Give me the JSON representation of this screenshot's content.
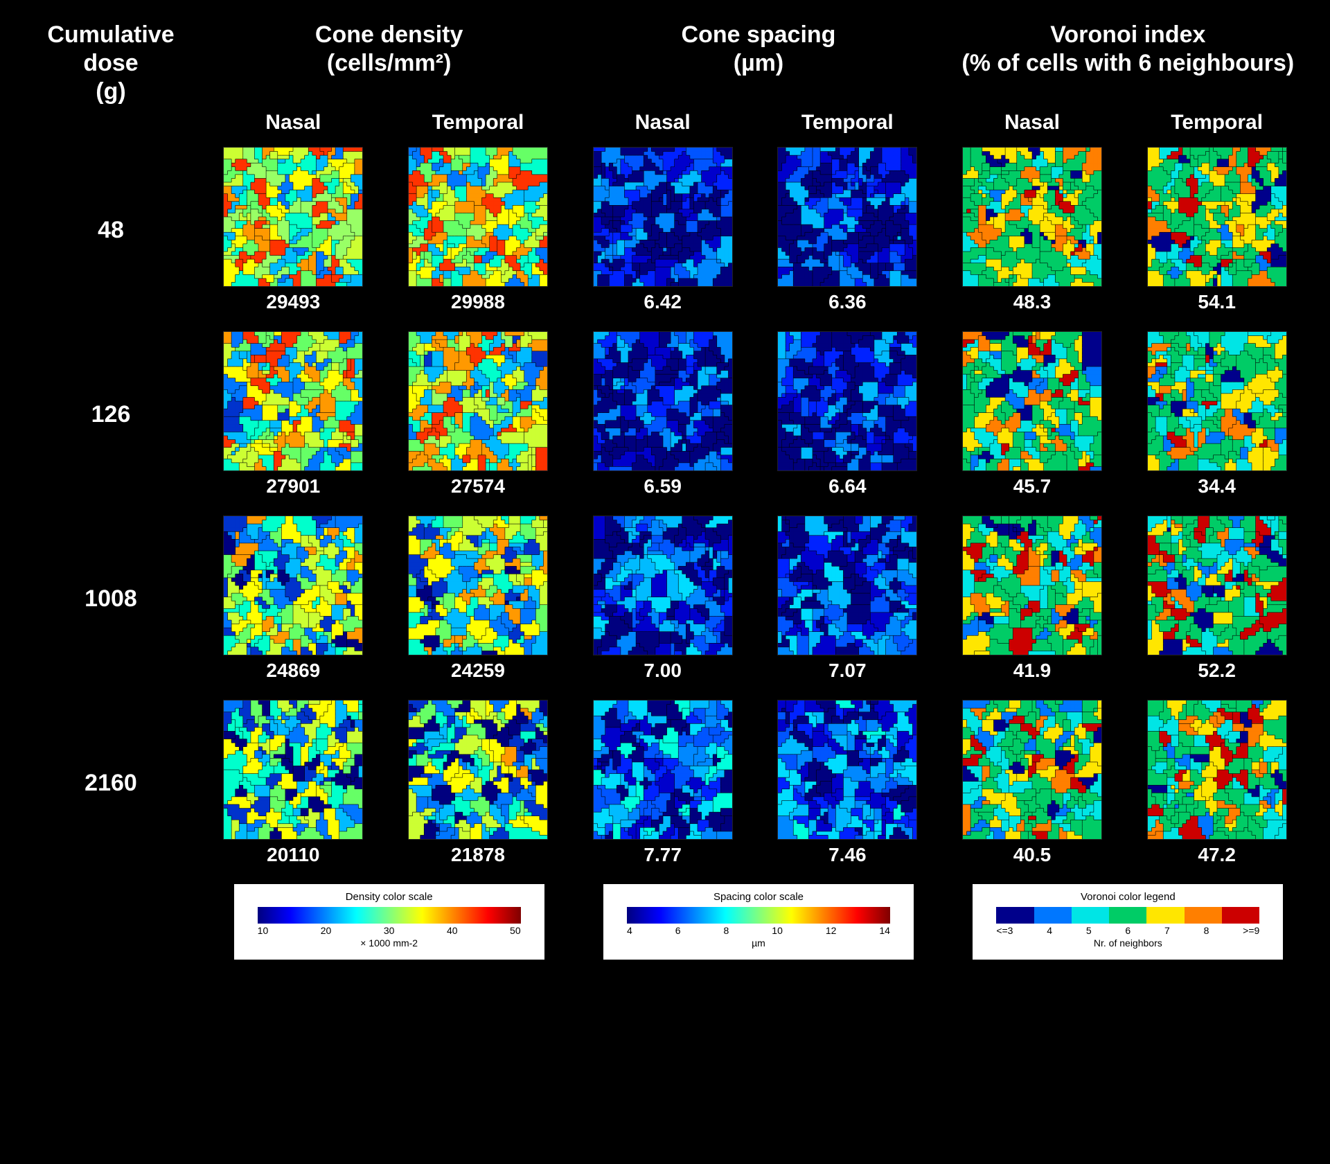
{
  "headers": {
    "row_label_l1": "Cumulative dose",
    "row_label_l2": "(g)",
    "col1_l1": "Cone density",
    "col1_l2": "(cells/mm²)",
    "col2_l1": "Cone spacing",
    "col2_l2": "(µm)",
    "col3_l1": "Voronoi index",
    "col3_l2": "(% of cells with 6 neighbours)",
    "sub_nasal": "Nasal",
    "sub_temporal": "Temporal"
  },
  "palettes": {
    "density": [
      "#00007f",
      "#0033cc",
      "#0077ff",
      "#00bbff",
      "#00ffcc",
      "#66ff66",
      "#ccff33",
      "#ffff00",
      "#ff9900",
      "#ff3300",
      "#99ff66",
      "#33ccff"
    ],
    "spacing": [
      "#00007f",
      "#0000cc",
      "#0022ff",
      "#0055ff",
      "#0088ff",
      "#00bbff",
      "#00ddff",
      "#00ffdd",
      "#33ffaa",
      "#66ff77",
      "#0044dd",
      "#0066ee"
    ],
    "voronoi": [
      "#00008b",
      "#0077ff",
      "#00e5e5",
      "#00cc66",
      "#ffe600",
      "#ff7f00",
      "#cc0000"
    ]
  },
  "legends": {
    "density": {
      "title": "Density color scale",
      "ticks": [
        "10",
        "20",
        "30",
        "40",
        "50"
      ],
      "unit": "× 1000 mm-2"
    },
    "spacing": {
      "title": "Spacing color scale",
      "ticks": [
        "4",
        "6",
        "8",
        "10",
        "12",
        "14"
      ],
      "unit": "µm"
    },
    "voronoi": {
      "title": "Voronoi color legend",
      "ticks": [
        "<=3",
        "4",
        "5",
        "6",
        "7",
        "8",
        ">=9"
      ],
      "unit": "Nr. of neighbors"
    }
  },
  "rows": [
    {
      "dose": "48",
      "cells": [
        {
          "palette": "density",
          "seed": 11,
          "value": "29493",
          "bias": 0.55
        },
        {
          "palette": "density",
          "seed": 12,
          "value": "29988",
          "bias": 0.55
        },
        {
          "palette": "spacing",
          "seed": 13,
          "value": "6.42",
          "bias": 0.12
        },
        {
          "palette": "spacing",
          "seed": 14,
          "value": "6.36",
          "bias": 0.12
        },
        {
          "palette": "voronoi",
          "seed": 15,
          "value": "48.3",
          "bias": 0.5
        },
        {
          "palette": "voronoi",
          "seed": 16,
          "value": "54.1",
          "bias": 0.5
        }
      ]
    },
    {
      "dose": "126",
      "cells": [
        {
          "palette": "density",
          "seed": 21,
          "value": "27901",
          "bias": 0.5
        },
        {
          "palette": "density",
          "seed": 22,
          "value": "27574",
          "bias": 0.5
        },
        {
          "palette": "spacing",
          "seed": 23,
          "value": "6.59",
          "bias": 0.14
        },
        {
          "palette": "spacing",
          "seed": 24,
          "value": "6.64",
          "bias": 0.14
        },
        {
          "palette": "voronoi",
          "seed": 25,
          "value": "45.7",
          "bias": 0.5
        },
        {
          "palette": "voronoi",
          "seed": 26,
          "value": "34.4",
          "bias": 0.5
        }
      ]
    },
    {
      "dose": "1008",
      "cells": [
        {
          "palette": "density",
          "seed": 31,
          "value": "24869",
          "bias": 0.4
        },
        {
          "palette": "density",
          "seed": 32,
          "value": "24259",
          "bias": 0.4
        },
        {
          "palette": "spacing",
          "seed": 33,
          "value": "7.00",
          "bias": 0.2
        },
        {
          "palette": "spacing",
          "seed": 34,
          "value": "7.07",
          "bias": 0.2
        },
        {
          "palette": "voronoi",
          "seed": 35,
          "value": "41.9",
          "bias": 0.5
        },
        {
          "palette": "voronoi",
          "seed": 36,
          "value": "52.2",
          "bias": 0.5
        }
      ]
    },
    {
      "dose": "2160",
      "cells": [
        {
          "palette": "density",
          "seed": 41,
          "value": "20110",
          "bias": 0.32
        },
        {
          "palette": "density",
          "seed": 42,
          "value": "21878",
          "bias": 0.34
        },
        {
          "palette": "spacing",
          "seed": 43,
          "value": "7.77",
          "bias": 0.3
        },
        {
          "palette": "spacing",
          "seed": 44,
          "value": "7.46",
          "bias": 0.28
        },
        {
          "palette": "voronoi",
          "seed": 45,
          "value": "40.5",
          "bias": 0.5
        },
        {
          "palette": "voronoi",
          "seed": 46,
          "value": "47.2",
          "bias": 0.5
        }
      ]
    }
  ],
  "voronoi_render": {
    "size": 200,
    "points": 140,
    "stroke": "#000000",
    "stroke_width": 0.6
  }
}
